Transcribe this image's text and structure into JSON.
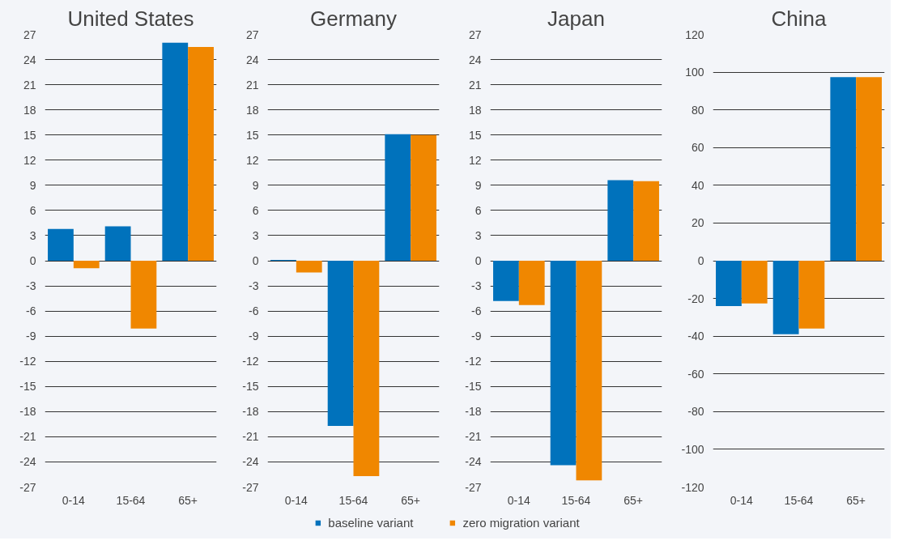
{
  "chart_data": [
    {
      "type": "bar",
      "title": "United States",
      "categories": [
        "0-14",
        "15-64",
        "65+"
      ],
      "series": [
        {
          "name": "baseline variant",
          "color": "#0072bc",
          "values": [
            3.8,
            4.1,
            26.0
          ]
        },
        {
          "name": "zero migration variant",
          "color": "#f08700",
          "values": [
            -0.9,
            -8.1,
            25.5
          ]
        }
      ],
      "ylim": [
        -27,
        27
      ],
      "yticks": [
        -27,
        -24,
        -21,
        -18,
        -15,
        -12,
        -9,
        -6,
        -3,
        0,
        3,
        6,
        9,
        12,
        15,
        18,
        21,
        24,
        27
      ],
      "grid": "y",
      "legend": "bottom"
    },
    {
      "type": "bar",
      "title": "Germany",
      "categories": [
        "0-14",
        "15-64",
        "65+"
      ],
      "series": [
        {
          "color": "#0072bc",
          "values": [
            0.1,
            -19.7,
            15.1
          ]
        },
        {
          "color": "#f08700",
          "values": [
            -1.4,
            -25.7,
            15.0
          ]
        }
      ],
      "ylim": [
        -27,
        27
      ],
      "yticks": [
        -27,
        -24,
        -21,
        -18,
        -15,
        -12,
        -9,
        -6,
        -3,
        0,
        3,
        6,
        9,
        12,
        15,
        18,
        21,
        24,
        27
      ],
      "grid": "y"
    },
    {
      "type": "bar",
      "title": "Japan",
      "categories": [
        "0-14",
        "15-64",
        "65+"
      ],
      "series": [
        {
          "color": "#0072bc",
          "values": [
            -4.8,
            -24.4,
            9.6
          ]
        },
        {
          "color": "#f08700",
          "values": [
            -5.3,
            -26.2,
            9.5
          ]
        }
      ],
      "ylim": [
        -27,
        27
      ],
      "yticks": [
        -27,
        -24,
        -21,
        -18,
        -15,
        -12,
        -9,
        -6,
        -3,
        0,
        3,
        6,
        9,
        12,
        15,
        18,
        21,
        24,
        27
      ],
      "grid": "y"
    },
    {
      "type": "bar",
      "title": "China",
      "categories": [
        "0-14",
        "15-64",
        "65+"
      ],
      "series": [
        {
          "color": "#0072bc",
          "values": [
            -24,
            -39,
            97.4
          ]
        },
        {
          "color": "#f08700",
          "values": [
            -22.6,
            -36,
            97.4
          ]
        }
      ],
      "ylim": [
        -120,
        120
      ],
      "yticks": [
        -120,
        -100,
        -80,
        -60,
        -40,
        -20,
        0,
        20,
        40,
        60,
        80,
        100,
        120
      ],
      "grid": "y"
    }
  ]
}
